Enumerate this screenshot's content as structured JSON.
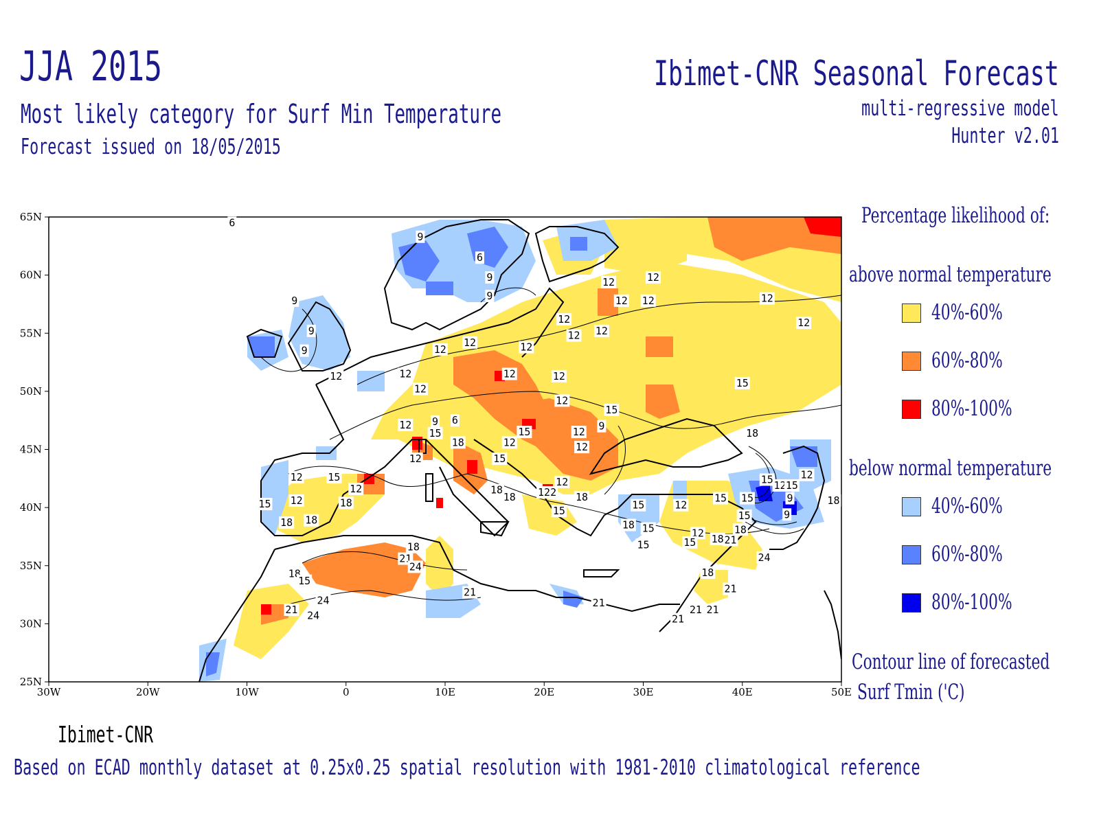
{
  "header": {
    "season": "JJA 2015",
    "subtitle": "Most likely category for Surf Min Temperature",
    "issued": "Forecast issued on 18/05/2015",
    "org_title": "Ibimet-CNR Seasonal Forecast",
    "model": "multi-regressive model",
    "version": "Hunter v2.01"
  },
  "footer": {
    "org": "Ibimet-CNR",
    "note": "Based on ECAD monthly dataset at 0.25x0.25 spatial resolution with 1981-2010 climatological reference"
  },
  "axes": {
    "lat_ticks": [
      "65N",
      "60N",
      "55N",
      "50N",
      "45N",
      "40N",
      "35N",
      "30N",
      "25N"
    ],
    "lon_ticks": [
      "30W",
      "20W",
      "10W",
      "0",
      "10E",
      "20E",
      "30E",
      "40E",
      "50E"
    ],
    "lat_range": [
      25,
      65
    ],
    "lon_range": [
      -30,
      50
    ]
  },
  "legend": {
    "title": "Percentage likelihood of:",
    "above_label": "above normal temperature",
    "below_label": "below normal temperature",
    "contour_label_1": "Contour line of forecasted",
    "contour_label_2": "Surf Tmin ('C)",
    "above": [
      {
        "label": "40%-60%",
        "color": "#ffe85a"
      },
      {
        "label": "60%-80%",
        "color": "#ff8a33"
      },
      {
        "label": "80%-100%",
        "color": "#ff0000"
      }
    ],
    "below": [
      {
        "label": "40%-60%",
        "color": "#a8d0ff"
      },
      {
        "label": "60%-80%",
        "color": "#5a82ff"
      },
      {
        "label": "80%-100%",
        "color": "#0000ee"
      }
    ]
  },
  "contour_labels": [
    {
      "text": "6",
      "lon": -11.5,
      "lat": 64.5
    },
    {
      "text": "9",
      "lon": 7.5,
      "lat": 63.3
    },
    {
      "text": "6",
      "lon": 13.5,
      "lat": 61.5
    },
    {
      "text": "9",
      "lon": 14.5,
      "lat": 59.8
    },
    {
      "text": "9",
      "lon": 14.5,
      "lat": 58.2
    },
    {
      "text": "9",
      "lon": -5.2,
      "lat": 57.8
    },
    {
      "text": "9",
      "lon": -3.5,
      "lat": 55.2
    },
    {
      "text": "9",
      "lon": -4.2,
      "lat": 53.5
    },
    {
      "text": "12",
      "lon": -1,
      "lat": 51.3
    },
    {
      "text": "12",
      "lon": 26.5,
      "lat": 59.4
    },
    {
      "text": "12",
      "lon": 31,
      "lat": 59.8
    },
    {
      "text": "12",
      "lon": 27.8,
      "lat": 57.8
    },
    {
      "text": "12",
      "lon": 30.5,
      "lat": 57.8
    },
    {
      "text": "12",
      "lon": 22,
      "lat": 56.2
    },
    {
      "text": "12",
      "lon": 23,
      "lat": 54.8
    },
    {
      "text": "12",
      "lon": 25.8,
      "lat": 55.2
    },
    {
      "text": "12",
      "lon": 12.5,
      "lat": 54.2
    },
    {
      "text": "12",
      "lon": 18.2,
      "lat": 53.8
    },
    {
      "text": "12",
      "lon": 9.5,
      "lat": 53.6
    },
    {
      "text": "12",
      "lon": 16.5,
      "lat": 51.5
    },
    {
      "text": "12",
      "lon": 6,
      "lat": 51.5
    },
    {
      "text": "12",
      "lon": 7.5,
      "lat": 50.2
    },
    {
      "text": "12",
      "lon": 21.5,
      "lat": 51.3
    },
    {
      "text": "12",
      "lon": 21.8,
      "lat": 49.2
    },
    {
      "text": "15",
      "lon": 26.8,
      "lat": 48.4
    },
    {
      "text": "9",
      "lon": 25.8,
      "lat": 47
    },
    {
      "text": "12",
      "lon": 23.5,
      "lat": 46.5
    },
    {
      "text": "12",
      "lon": 23.8,
      "lat": 45.2
    },
    {
      "text": "15",
      "lon": 18,
      "lat": 46.5
    },
    {
      "text": "12",
      "lon": 16.5,
      "lat": 45.6
    },
    {
      "text": "12",
      "lon": 6,
      "lat": 47.1
    },
    {
      "text": "9",
      "lon": 9,
      "lat": 47.4
    },
    {
      "text": "6",
      "lon": 11,
      "lat": 47.5
    },
    {
      "text": "15",
      "lon": 9,
      "lat": 46.4
    },
    {
      "text": "18",
      "lon": 11.3,
      "lat": 45.6
    },
    {
      "text": "12",
      "lon": 7,
      "lat": 44.2
    },
    {
      "text": "15",
      "lon": 15.5,
      "lat": 44.2
    },
    {
      "text": "15",
      "lon": -1.2,
      "lat": 42.6
    },
    {
      "text": "12",
      "lon": -5,
      "lat": 42.6
    },
    {
      "text": "12",
      "lon": 1,
      "lat": 41.6
    },
    {
      "text": "12",
      "lon": -5,
      "lat": 40.6
    },
    {
      "text": "18",
      "lon": 0,
      "lat": 40.4
    },
    {
      "text": "15",
      "lon": -8.2,
      "lat": 40.3
    },
    {
      "text": "18",
      "lon": -6,
      "lat": 38.7
    },
    {
      "text": "18",
      "lon": -3.5,
      "lat": 38.9
    },
    {
      "text": "12",
      "lon": 21.8,
      "lat": 42.2
    },
    {
      "text": "122",
      "lon": 20.3,
      "lat": 41.3
    },
    {
      "text": "18",
      "lon": 15.2,
      "lat": 41.5
    },
    {
      "text": "18",
      "lon": 16.5,
      "lat": 40.9
    },
    {
      "text": "18",
      "lon": 23.8,
      "lat": 40.9
    },
    {
      "text": "15",
      "lon": 21.5,
      "lat": 39.7
    },
    {
      "text": "15",
      "lon": 29.5,
      "lat": 40.2
    },
    {
      "text": "12",
      "lon": 33.8,
      "lat": 40.2
    },
    {
      "text": "15",
      "lon": 37.8,
      "lat": 40.8
    },
    {
      "text": "15",
      "lon": 40.5,
      "lat": 40.8
    },
    {
      "text": "15",
      "lon": 40.2,
      "lat": 39.3
    },
    {
      "text": "18",
      "lon": 39.8,
      "lat": 38.1
    },
    {
      "text": "21",
      "lon": 38.8,
      "lat": 37.2
    },
    {
      "text": "18",
      "lon": 37.5,
      "lat": 37.3
    },
    {
      "text": "12",
      "lon": 35.5,
      "lat": 37.8
    },
    {
      "text": "15",
      "lon": 34.7,
      "lat": 37.0
    },
    {
      "text": "15",
      "lon": 30.5,
      "lat": 38.2
    },
    {
      "text": "15",
      "lon": 30,
      "lat": 36.8
    },
    {
      "text": "18",
      "lon": 28.5,
      "lat": 38.5
    },
    {
      "text": "18",
      "lon": 36.5,
      "lat": 34.4
    },
    {
      "text": "21",
      "lon": 38.8,
      "lat": 33.0
    },
    {
      "text": "24",
      "lon": 42.2,
      "lat": 35.7
    },
    {
      "text": "18",
      "lon": 41,
      "lat": 46.4
    },
    {
      "text": "18",
      "lon": 49.2,
      "lat": 40.6
    },
    {
      "text": "15",
      "lon": 42.5,
      "lat": 42.4
    },
    {
      "text": "12",
      "lon": 43.8,
      "lat": 41.9
    },
    {
      "text": "15",
      "lon": 45,
      "lat": 41.9
    },
    {
      "text": "9",
      "lon": 44.8,
      "lat": 40.8
    },
    {
      "text": "9",
      "lon": 44.5,
      "lat": 39.4
    },
    {
      "text": "12",
      "lon": 46.5,
      "lat": 42.8
    },
    {
      "text": "12",
      "lon": 46.2,
      "lat": 55.9
    },
    {
      "text": "12",
      "lon": 42.5,
      "lat": 58.0
    },
    {
      "text": "15",
      "lon": 40,
      "lat": 50.7
    },
    {
      "text": "18",
      "lon": 6.8,
      "lat": 36.6
    },
    {
      "text": "21",
      "lon": 6,
      "lat": 35.6
    },
    {
      "text": "24",
      "lon": 7,
      "lat": 34.9
    },
    {
      "text": "21",
      "lon": 12.5,
      "lat": 32.7
    },
    {
      "text": "18",
      "lon": -5.2,
      "lat": 34.3
    },
    {
      "text": "15",
      "lon": -4.2,
      "lat": 33.7
    },
    {
      "text": "21",
      "lon": -5.5,
      "lat": 31.2
    },
    {
      "text": "24",
      "lon": -3.3,
      "lat": 30.7
    },
    {
      "text": "24",
      "lon": -2.3,
      "lat": 32.0
    },
    {
      "text": "21",
      "lon": 33.5,
      "lat": 30.4
    },
    {
      "text": "21",
      "lon": 35.3,
      "lat": 31.2
    },
    {
      "text": "21",
      "lon": 37,
      "lat": 31.2
    },
    {
      "text": "21",
      "lon": 25.5,
      "lat": 31.8
    }
  ]
}
